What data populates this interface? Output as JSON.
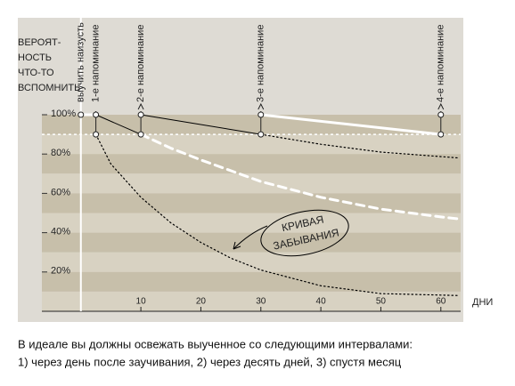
{
  "chart_data": {
    "type": "line",
    "y_axis_title": [
      "ВЕРОЯТ-",
      "НОСТЬ",
      "ЧТО-ТО",
      "ВСПОМНИТЬ"
    ],
    "x_axis_label": "ДНИ",
    "xlim": [
      -6.5,
      63.3
    ],
    "ylim": [
      0,
      100
    ],
    "xticks": [
      10,
      20,
      30,
      40,
      50,
      60
    ],
    "yticks": [
      {
        "value": 20,
        "label": "20%"
      },
      {
        "value": 40,
        "label": "40%"
      },
      {
        "value": 60,
        "label": "60%"
      },
      {
        "value": 80,
        "label": "80%"
      },
      {
        "value": 100,
        "label": "100%"
      }
    ],
    "reference_line": 90,
    "events": [
      {
        "x": 0,
        "label": "выучить наизусть"
      },
      {
        "x": 2.5,
        "label": "1-е напоминание"
      },
      {
        "x": 10,
        "label": "2-е напоминание"
      },
      {
        "x": 30,
        "label": "3-е напоминание"
      },
      {
        "x": 60,
        "label": "4-е напоминание"
      }
    ],
    "series": [
      {
        "color": "#000000",
        "style": "dotted",
        "width": 1.2,
        "x": [
          2.5,
          5,
          10,
          15,
          20,
          25,
          30,
          40,
          50,
          63
        ],
        "values": [
          90,
          75,
          58,
          45,
          35,
          27,
          21,
          13,
          9,
          8
        ]
      },
      {
        "color": "#ffffff",
        "style": "dashed",
        "width": 3,
        "x": [
          10,
          15,
          20,
          30,
          40,
          50,
          60,
          63
        ],
        "values": [
          90,
          83,
          77,
          66,
          58,
          52,
          48,
          47
        ]
      },
      {
        "color": "#000000",
        "style": "dotted",
        "width": 1.2,
        "x": [
          30,
          40,
          50,
          63
        ],
        "values": [
          90,
          85,
          81,
          78
        ]
      },
      {
        "color": "#000000",
        "style": "solid",
        "width": 1,
        "x": [
          2.5,
          10,
          null,
          10,
          30
        ],
        "values": [
          100,
          90,
          null,
          100,
          90
        ]
      },
      {
        "color": "#ffffff",
        "style": "solid",
        "width": 3,
        "x": [
          0,
          2.5,
          null,
          30,
          60
        ],
        "values": [
          100,
          100,
          null,
          100,
          90
        ]
      }
    ],
    "markers": {
      "x": [
        0,
        2.5,
        2.5,
        10,
        10,
        30,
        30,
        60,
        60
      ],
      "values": [
        100,
        100,
        90,
        100,
        90,
        100,
        90,
        100,
        90
      ]
    },
    "annotation": [
      "КРИВАЯ",
      "ЗАБЫВАНИЯ"
    ],
    "caption": [
      "В идеале вы должны освежать выученное со следующими интервалами:",
      "1) через день после заучивания, 2) через десять дней, 3) спустя месяц"
    ]
  }
}
